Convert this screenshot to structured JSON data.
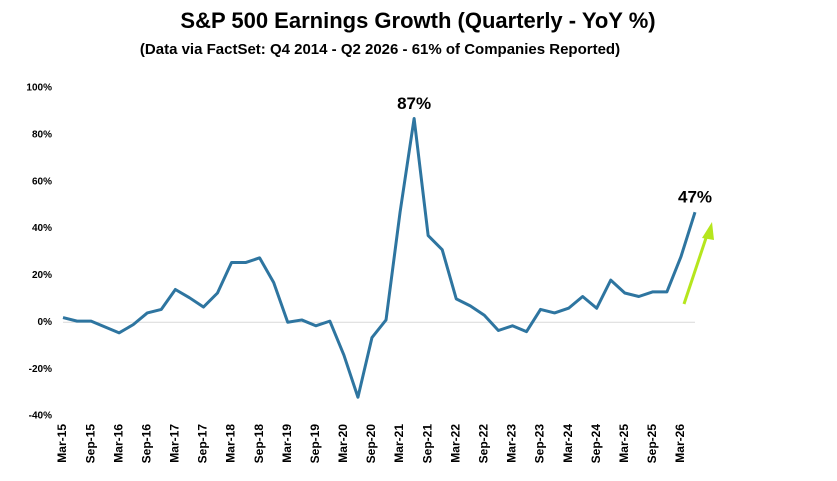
{
  "chart_data": {
    "type": "line",
    "title": "S&P 500 Earnings Growth (Quarterly - YoY %)",
    "subtitle": "(Data via FactSet: Q4 2014 - Q2 2026 - 61% of Companies Reported)",
    "categories": [
      "Mar-15",
      null,
      "Sep-15",
      null,
      "Mar-16",
      null,
      "Sep-16",
      null,
      "Mar-17",
      null,
      "Sep-17",
      null,
      "Mar-18",
      null,
      "Sep-18",
      null,
      "Mar-19",
      null,
      "Sep-19",
      null,
      "Mar-20",
      null,
      "Sep-20",
      null,
      "Mar-21",
      null,
      "Sep-21",
      null,
      "Mar-22",
      null,
      "Sep-22",
      null,
      "Mar-23",
      null,
      "Sep-23",
      null,
      "Mar-24",
      null,
      "Sep-24",
      null,
      "Mar-25",
      null,
      "Sep-25",
      null,
      "Mar-26",
      null
    ],
    "series": [
      {
        "color": "#2e75a0",
        "values": [
          2,
          0.5,
          0.5,
          -2,
          -4.5,
          -1,
          4,
          5.5,
          14,
          10.5,
          6.5,
          12.5,
          25.5,
          25.5,
          27.5,
          17,
          0,
          1,
          -1.5,
          0.5,
          -14,
          -32,
          -6.5,
          1,
          47,
          87,
          37,
          31,
          10,
          7,
          3,
          -3.5,
          -1.5,
          -4,
          5.5,
          4,
          6,
          11,
          6,
          18,
          12.5,
          11,
          13,
          13,
          28,
          47
        ],
        "value_labels": [
          null,
          null,
          null,
          null,
          null,
          null,
          null,
          null,
          null,
          null,
          null,
          null,
          null,
          null,
          null,
          null,
          null,
          null,
          null,
          null,
          null,
          null,
          null,
          null,
          null,
          "87%",
          null,
          null,
          null,
          null,
          null,
          null,
          null,
          null,
          null,
          null,
          null,
          null,
          null,
          null,
          null,
          null,
          null,
          null,
          null,
          "47%"
        ]
      }
    ],
    "ylim": [
      -40,
      100
    ],
    "yticks": [
      {
        "value": -40,
        "label": "-40%"
      },
      {
        "value": -20,
        "label": "-20%"
      },
      {
        "value": 0,
        "label": "0%"
      },
      {
        "value": 20,
        "label": "20%"
      },
      {
        "value": 40,
        "label": "40%"
      },
      {
        "value": 60,
        "label": "60%"
      },
      {
        "value": 80,
        "label": "80%"
      },
      {
        "value": 100,
        "label": "100%"
      }
    ]
  }
}
